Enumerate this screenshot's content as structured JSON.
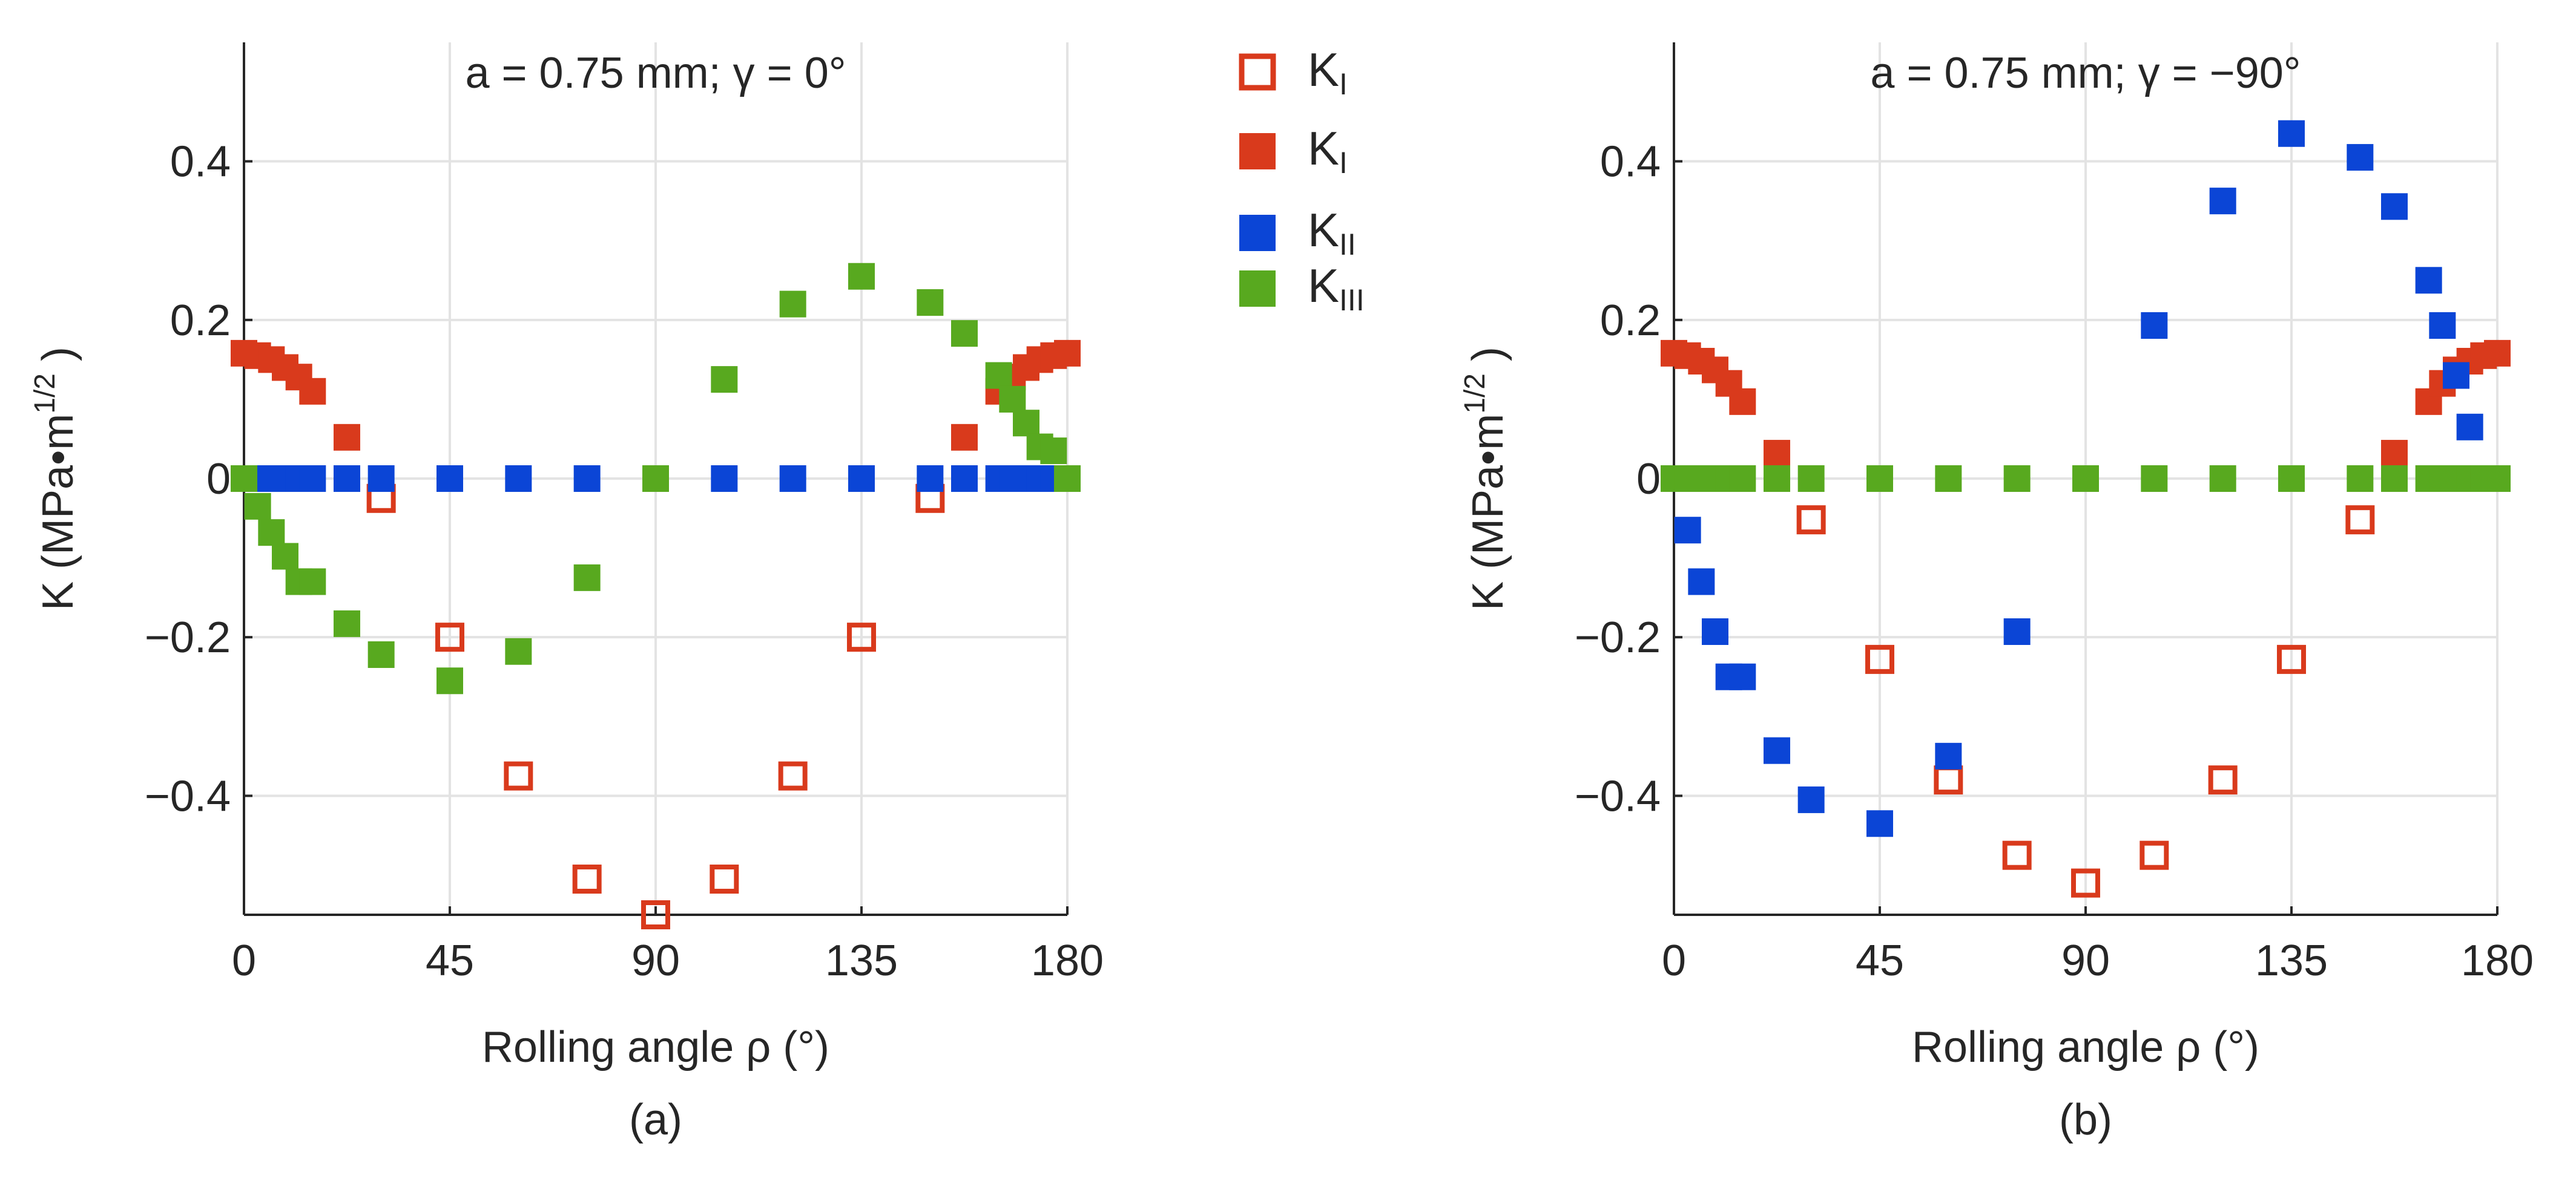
{
  "legend": {
    "items": [
      {
        "base": "K",
        "sub": "I",
        "marker": "open-square",
        "color": "#d93a1c"
      },
      {
        "base": "K",
        "sub": "I",
        "marker": "filled-square",
        "color": "#d93a1c"
      },
      {
        "base": "K",
        "sub": "II",
        "marker": "filled-square",
        "color": "#0b45d6"
      },
      {
        "base": "K",
        "sub": "III",
        "marker": "filled-square",
        "color": "#58a91f"
      }
    ]
  },
  "chart_data": [
    {
      "type": "scatter",
      "panel_label": "(a)",
      "title": "a = 0.75 mm; γ  = 0°",
      "xlabel": "Rolling angle ρ  (°)",
      "ylabel": "K (MPa•m",
      "ylabel_sup": "1/2",
      "ylabel_close": ")",
      "xlim": [
        0,
        180
      ],
      "ylim": [
        -0.55,
        0.55
      ],
      "xticks": [
        0,
        45,
        90,
        135,
        180
      ],
      "xtick_labels": [
        "0",
        "45",
        "90",
        "135",
        "180"
      ],
      "yticks": [
        0.4,
        0.2,
        0,
        -0.2,
        -0.4
      ],
      "ytick_labels": [
        "0.4",
        "0.2",
        "0",
        "−0.2",
        "−0.4"
      ],
      "grid": true,
      "series": [
        {
          "name": "K_I (open)",
          "marker": "open",
          "color": "#d93a1c",
          "x": [
            30,
            45,
            60,
            75,
            90,
            105,
            120,
            135,
            150
          ],
          "y": [
            -0.025,
            -0.2,
            -0.375,
            -0.505,
            -0.55,
            -0.505,
            -0.375,
            -0.2,
            -0.025
          ]
        },
        {
          "name": "K_I (filled)",
          "marker": "filled",
          "color": "#d93a1c",
          "x": [
            0,
            3,
            6,
            9,
            12,
            15,
            22.5,
            157.5,
            165,
            168,
            171,
            174,
            177,
            180
          ],
          "y": [
            0.158,
            0.155,
            0.15,
            0.14,
            0.128,
            0.11,
            0.052,
            0.052,
            0.11,
            0.128,
            0.14,
            0.15,
            0.155,
            0.158
          ]
        },
        {
          "name": "K_II",
          "marker": "filled",
          "color": "#0b45d6",
          "x": [
            3,
            6,
            9,
            12,
            15,
            22.5,
            30,
            45,
            60,
            75,
            105,
            120,
            135,
            150,
            157.5,
            165,
            168,
            171,
            174,
            177
          ],
          "y": [
            0,
            0,
            0,
            0,
            0,
            0,
            0,
            0,
            0,
            0,
            0,
            0,
            0,
            0,
            0,
            0,
            0,
            0,
            0,
            0
          ]
        },
        {
          "name": "K_III",
          "marker": "filled",
          "color": "#58a91f",
          "x": [
            0,
            3,
            6,
            9,
            12,
            15,
            22.5,
            30,
            45,
            60,
            75,
            90,
            105,
            120,
            135,
            150,
            157.5,
            165,
            168,
            171,
            174,
            177,
            180
          ],
          "y": [
            0,
            -0.035,
            -0.068,
            -0.098,
            -0.13,
            -0.13,
            -0.183,
            -0.222,
            -0.255,
            -0.218,
            -0.125,
            0,
            0.125,
            0.22,
            0.255,
            0.222,
            0.183,
            0.13,
            0.1,
            0.07,
            0.04,
            0.035,
            0
          ]
        }
      ]
    },
    {
      "type": "scatter",
      "panel_label": "(b)",
      "title": "a = 0.75 mm; γ  = −90°",
      "xlabel": "Rolling angle ρ  (°)",
      "ylabel": "K (MPa•m",
      "ylabel_sup": "1/2",
      "ylabel_close": ")",
      "xlim": [
        0,
        180
      ],
      "ylim": [
        -0.55,
        0.55
      ],
      "xticks": [
        0,
        45,
        90,
        135,
        180
      ],
      "xtick_labels": [
        "0",
        "45",
        "90",
        "135",
        "180"
      ],
      "yticks": [
        0.4,
        0.2,
        0,
        -0.2,
        -0.4
      ],
      "ytick_labels": [
        "0.4",
        "0.2",
        "0",
        "−0.2",
        "−0.4"
      ],
      "grid": true,
      "series": [
        {
          "name": "K_I (open)",
          "marker": "open",
          "color": "#d93a1c",
          "x": [
            30,
            45,
            60,
            75,
            90,
            105,
            120,
            135,
            150
          ],
          "y": [
            -0.052,
            -0.228,
            -0.38,
            -0.475,
            -0.51,
            -0.475,
            -0.38,
            -0.228,
            -0.052
          ]
        },
        {
          "name": "K_I (filled)",
          "marker": "filled",
          "color": "#d93a1c",
          "x": [
            0,
            3,
            6,
            9,
            12,
            15,
            22.5,
            157.5,
            165,
            168,
            171,
            174,
            177,
            180
          ],
          "y": [
            0.158,
            0.155,
            0.148,
            0.137,
            0.12,
            0.097,
            0.032,
            0.032,
            0.097,
            0.12,
            0.137,
            0.148,
            0.155,
            0.158
          ]
        },
        {
          "name": "K_II",
          "marker": "filled",
          "color": "#0b45d6",
          "x": [
            3,
            6,
            9,
            12,
            15,
            22.5,
            30,
            45,
            60,
            75,
            105,
            120,
            135,
            150,
            157.5,
            165,
            168,
            171,
            174,
            177
          ],
          "y": [
            -0.065,
            -0.13,
            -0.193,
            -0.25,
            -0.25,
            -0.343,
            -0.405,
            -0.435,
            -0.35,
            -0.193,
            0.193,
            0.35,
            0.435,
            0.405,
            0.343,
            0.25,
            0.193,
            0.13,
            0.065,
            0
          ]
        },
        {
          "name": "K_III",
          "marker": "filled",
          "color": "#58a91f",
          "x": [
            0,
            3,
            6,
            9,
            12,
            15,
            22.5,
            30,
            45,
            60,
            75,
            90,
            105,
            120,
            135,
            150,
            157.5,
            165,
            168,
            171,
            174,
            177,
            180
          ],
          "y": [
            0,
            0,
            0,
            0,
            0,
            0,
            0,
            0,
            0,
            0,
            0,
            0,
            0,
            0,
            0,
            0,
            0,
            0,
            0,
            0,
            0,
            0,
            0
          ]
        }
      ]
    }
  ]
}
